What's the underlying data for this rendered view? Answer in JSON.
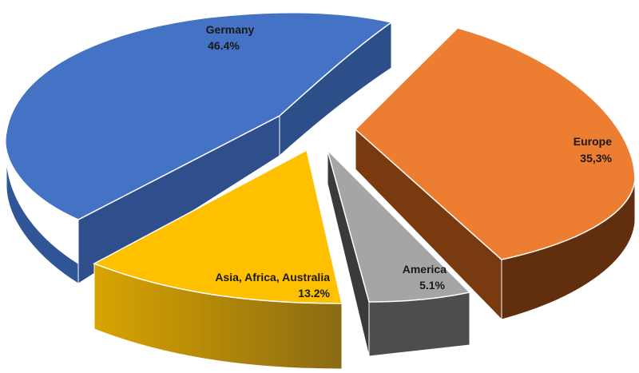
{
  "chart_data": {
    "type": "pie",
    "style": "3d-exploded",
    "slices": [
      {
        "name": "Germany",
        "label": "46.4%",
        "value": 46.4,
        "color": "#4472C4"
      },
      {
        "name": "Europe",
        "label": "35,3%",
        "value": 35.3,
        "color": "#ED7D31"
      },
      {
        "name": "America",
        "label": "5.1%",
        "value": 5.1,
        "color": "#A5A5A5"
      },
      {
        "name": "Asia, Africa, Australia",
        "label": "13.2%",
        "value": 13.2,
        "color": "#FFC000"
      }
    ]
  }
}
